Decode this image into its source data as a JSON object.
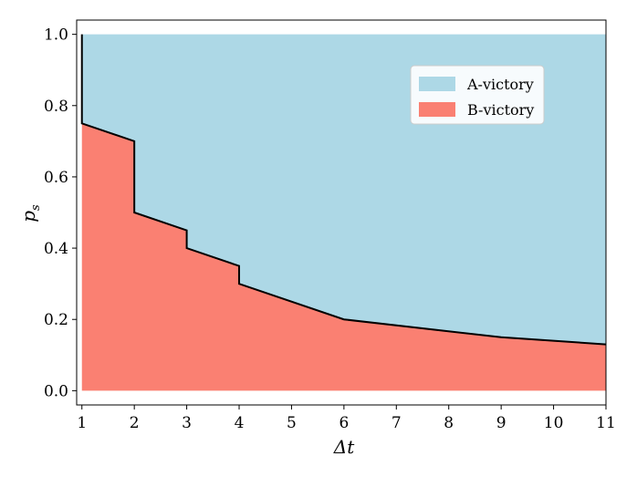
{
  "chart_data": {
    "type": "area",
    "xlabel": "Δt",
    "ylabel": "p_s",
    "xlim": [
      0.9,
      11
    ],
    "ylim": [
      -0.04,
      1.04
    ],
    "x_ticks": [
      1,
      2,
      3,
      4,
      5,
      6,
      7,
      8,
      9,
      10,
      11
    ],
    "y_ticks": [
      "0.0",
      "0.2",
      "0.4",
      "0.6",
      "0.8",
      "1.0"
    ],
    "boundary": [
      {
        "x": 1,
        "y": 1.0
      },
      {
        "x": 1,
        "y": 0.75
      },
      {
        "x": 2,
        "y": 0.7
      },
      {
        "x": 2,
        "y": 0.5
      },
      {
        "x": 3,
        "y": 0.45
      },
      {
        "x": 3,
        "y": 0.4
      },
      {
        "x": 4,
        "y": 0.35
      },
      {
        "x": 4,
        "y": 0.3
      },
      {
        "x": 6,
        "y": 0.2
      },
      {
        "x": 9,
        "y": 0.15
      },
      {
        "x": 11,
        "y": 0.13
      }
    ],
    "series": [
      {
        "name": "A-victory",
        "color": "#add8e6",
        "region": "above boundary"
      },
      {
        "name": "B-victory",
        "color": "#fa8072",
        "region": "below boundary"
      }
    ],
    "legend_position": "top-right",
    "grid": false,
    "boundary_color": "#000000"
  }
}
